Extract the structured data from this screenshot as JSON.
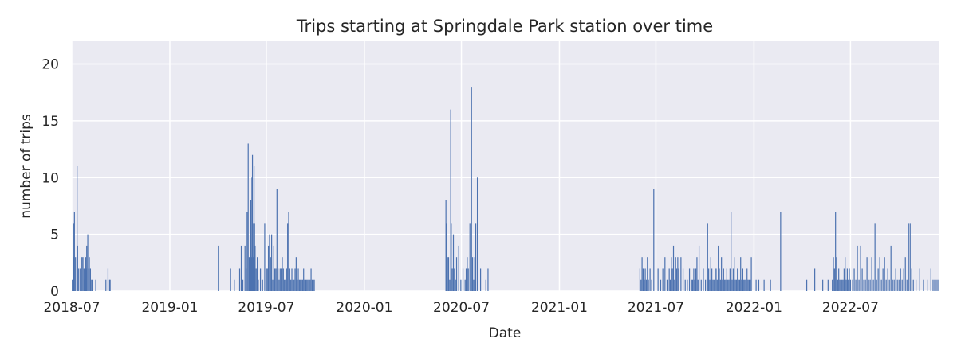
{
  "chart_data": {
    "type": "bar",
    "title": "Trips starting at Springdale Park station over time",
    "xlabel": "Date",
    "ylabel": "number of trips",
    "ylim": [
      0,
      22
    ],
    "xlim": [
      "2018-07-01",
      "2022-12-15"
    ],
    "grid": true,
    "colors": {
      "bar": "#4c72b0",
      "plot_bg": "#eaeaf2",
      "grid": "#ffffff",
      "text": "#262626"
    },
    "x_ticks": [
      "2018-07",
      "2019-01",
      "2019-07",
      "2020-01",
      "2020-07",
      "2021-01",
      "2021-07",
      "2022-01",
      "2022-07"
    ],
    "y_ticks": [
      "0",
      "5",
      "10",
      "15",
      "20"
    ],
    "series": [
      {
        "x": [
          "2018-07-02",
          "2018-07-04",
          "2018-07-05",
          "2018-07-06",
          "2018-07-08",
          "2018-07-11",
          "2018-07-12",
          "2018-07-14",
          "2018-07-17",
          "2018-07-20",
          "2018-07-22",
          "2018-07-24",
          "2018-07-25",
          "2018-07-27",
          "2018-07-28",
          "2018-07-29",
          "2018-07-31",
          "2018-08-02",
          "2018-08-03",
          "2018-08-05",
          "2018-08-06",
          "2018-08-08",
          "2018-08-15",
          "2018-09-03",
          "2018-09-07",
          "2018-09-10",
          "2018-09-11",
          "2019-04-02",
          "2019-04-25",
          "2019-05-02",
          "2019-05-12",
          "2019-05-15",
          "2019-05-18",
          "2019-05-22",
          "2019-05-24",
          "2019-05-26",
          "2019-05-28",
          "2019-05-30",
          "2019-06-01",
          "2019-06-02",
          "2019-06-03",
          "2019-06-04",
          "2019-06-05",
          "2019-06-06",
          "2019-06-07",
          "2019-06-08",
          "2019-06-09",
          "2019-06-10",
          "2019-06-12",
          "2019-06-14",
          "2019-06-16",
          "2019-06-20",
          "2019-06-24",
          "2019-06-28",
          "2019-07-01",
          "2019-07-03",
          "2019-07-05",
          "2019-07-07",
          "2019-07-09",
          "2019-07-11",
          "2019-07-13",
          "2019-07-15",
          "2019-07-17",
          "2019-07-19",
          "2019-07-21",
          "2019-07-23",
          "2019-07-25",
          "2019-07-27",
          "2019-07-29",
          "2019-07-31",
          "2019-08-02",
          "2019-08-04",
          "2019-08-06",
          "2019-08-08",
          "2019-08-10",
          "2019-08-12",
          "2019-08-14",
          "2019-08-16",
          "2019-08-18",
          "2019-08-20",
          "2019-08-22",
          "2019-08-24",
          "2019-08-26",
          "2019-08-28",
          "2019-08-30",
          "2019-09-01",
          "2019-09-03",
          "2019-09-05",
          "2019-09-07",
          "2019-09-09",
          "2019-09-11",
          "2019-09-13",
          "2019-09-15",
          "2019-09-17",
          "2019-09-19",
          "2019-09-21",
          "2019-09-23",
          "2019-09-25",
          "2019-09-27",
          "2019-09-29",
          "2020-06-02",
          "2020-06-03",
          "2020-06-05",
          "2020-06-07",
          "2020-06-09",
          "2020-06-11",
          "2020-06-12",
          "2020-06-14",
          "2020-06-16",
          "2020-06-18",
          "2020-06-20",
          "2020-06-22",
          "2020-06-26",
          "2020-06-30",
          "2020-07-04",
          "2020-07-08",
          "2020-07-10",
          "2020-07-12",
          "2020-07-14",
          "2020-07-17",
          "2020-07-20",
          "2020-07-22",
          "2020-07-24",
          "2020-07-26",
          "2020-07-28",
          "2020-07-31",
          "2020-08-06",
          "2020-08-16",
          "2020-08-20",
          "2021-06-01",
          "2021-06-03",
          "2021-06-05",
          "2021-06-07",
          "2021-06-09",
          "2021-06-11",
          "2021-06-13",
          "2021-06-15",
          "2021-06-17",
          "2021-06-20",
          "2021-06-23",
          "2021-06-27",
          "2021-07-05",
          "2021-07-10",
          "2021-07-14",
          "2021-07-18",
          "2021-07-22",
          "2021-07-26",
          "2021-07-28",
          "2021-07-30",
          "2021-08-01",
          "2021-08-03",
          "2021-08-05",
          "2021-08-07",
          "2021-08-09",
          "2021-08-11",
          "2021-08-13",
          "2021-08-17",
          "2021-08-21",
          "2021-08-25",
          "2021-08-29",
          "2021-09-02",
          "2021-09-06",
          "2021-09-08",
          "2021-09-10",
          "2021-09-12",
          "2021-09-14",
          "2021-09-16",
          "2021-09-18",
          "2021-09-20",
          "2021-09-24",
          "2021-09-28",
          "2021-10-02",
          "2021-10-06",
          "2021-10-08",
          "2021-10-10",
          "2021-10-12",
          "2021-10-14",
          "2021-10-16",
          "2021-10-18",
          "2021-10-20",
          "2021-10-22",
          "2021-10-24",
          "2021-10-26",
          "2021-10-28",
          "2021-10-30",
          "2021-11-01",
          "2021-11-03",
          "2021-11-05",
          "2021-11-07",
          "2021-11-09",
          "2021-11-11",
          "2021-11-13",
          "2021-11-15",
          "2021-11-17",
          "2021-11-19",
          "2021-11-21",
          "2021-11-23",
          "2021-11-25",
          "2021-11-27",
          "2021-11-29",
          "2021-12-01",
          "2021-12-03",
          "2021-12-05",
          "2021-12-07",
          "2021-12-09",
          "2021-12-11",
          "2021-12-13",
          "2021-12-15",
          "2021-12-17",
          "2021-12-19",
          "2021-12-21",
          "2021-12-23",
          "2021-12-25",
          "2021-12-27",
          "2022-01-05",
          "2022-01-10",
          "2022-01-20",
          "2022-02-01",
          "2022-02-20",
          "2022-04-10",
          "2022-04-25",
          "2022-05-10",
          "2022-05-20",
          "2022-05-28",
          "2022-05-30",
          "2022-06-01",
          "2022-06-03",
          "2022-06-05",
          "2022-06-07",
          "2022-06-09",
          "2022-06-11",
          "2022-06-13",
          "2022-06-15",
          "2022-06-17",
          "2022-06-19",
          "2022-06-21",
          "2022-06-23",
          "2022-06-25",
          "2022-06-27",
          "2022-06-29",
          "2022-07-01",
          "2022-07-05",
          "2022-07-08",
          "2022-07-11",
          "2022-07-14",
          "2022-07-17",
          "2022-07-20",
          "2022-07-23",
          "2022-07-26",
          "2022-07-29",
          "2022-08-01",
          "2022-08-04",
          "2022-08-07",
          "2022-08-10",
          "2022-08-13",
          "2022-08-16",
          "2022-08-19",
          "2022-08-22",
          "2022-08-25",
          "2022-08-28",
          "2022-08-31",
          "2022-09-03",
          "2022-09-06",
          "2022-09-09",
          "2022-09-12",
          "2022-09-15",
          "2022-09-18",
          "2022-09-21",
          "2022-09-24",
          "2022-09-27",
          "2022-09-30",
          "2022-10-03",
          "2022-10-06",
          "2022-10-09",
          "2022-10-12",
          "2022-10-15",
          "2022-10-18",
          "2022-10-21",
          "2022-10-24",
          "2022-10-27",
          "2022-11-01",
          "2022-11-08",
          "2022-11-15",
          "2022-11-22",
          "2022-11-29",
          "2022-12-03",
          "2022-12-06",
          "2022-12-09",
          "2022-12-12"
        ],
        "values": [
          1,
          3,
          6,
          7,
          3,
          11,
          4,
          2,
          2,
          3,
          3,
          2,
          1,
          3,
          2,
          4,
          5,
          2,
          3,
          2,
          1,
          1,
          1,
          1,
          2,
          1,
          1,
          4,
          2,
          1,
          2,
          4,
          1,
          4,
          2,
          7,
          13,
          3,
          3,
          8,
          3,
          10,
          12,
          3,
          6,
          11,
          6,
          4,
          2,
          3,
          1,
          2,
          1,
          6,
          2,
          2,
          4,
          5,
          3,
          5,
          1,
          4,
          2,
          2,
          9,
          2,
          1,
          2,
          2,
          3,
          2,
          1,
          1,
          2,
          6,
          7,
          2,
          1,
          2,
          1,
          1,
          2,
          3,
          1,
          2,
          1,
          1,
          1,
          1,
          2,
          1,
          1,
          1,
          1,
          1,
          1,
          2,
          1,
          1,
          1,
          8,
          6,
          3,
          3,
          1,
          16,
          6,
          2,
          5,
          2,
          1,
          3,
          4,
          1,
          2,
          1,
          2,
          3,
          2,
          6,
          18,
          3,
          1,
          3,
          6,
          10,
          2,
          1,
          2,
          2,
          1,
          3,
          2,
          1,
          2,
          1,
          3,
          1,
          2,
          1,
          9,
          2,
          1,
          2,
          3,
          1,
          2,
          1,
          3,
          2,
          4,
          1,
          3,
          2,
          3,
          2,
          3,
          2,
          1,
          1,
          2,
          1,
          1,
          2,
          1,
          2,
          3,
          1,
          4,
          1,
          2,
          1,
          6,
          2,
          1,
          3,
          2,
          1,
          1,
          2,
          2,
          1,
          4,
          2,
          1,
          3,
          1,
          2,
          1,
          1,
          2,
          1,
          1,
          2,
          7,
          1,
          2,
          3,
          1,
          1,
          2,
          1,
          1,
          3,
          1,
          2,
          1,
          1,
          1,
          2,
          1,
          1,
          1,
          3,
          1,
          1,
          1,
          1,
          7,
          1,
          2,
          1,
          1,
          1,
          3,
          2,
          7,
          3,
          1,
          2,
          1,
          1,
          1,
          1,
          2,
          3,
          1,
          2,
          1,
          2,
          1,
          1,
          2,
          1,
          4,
          1,
          4,
          2,
          1,
          1,
          3,
          1,
          1,
          3,
          1,
          6,
          1,
          2,
          3,
          1,
          2,
          3,
          1,
          2,
          1,
          4,
          1,
          1,
          2,
          1,
          1,
          2,
          1,
          2,
          3,
          1,
          6,
          6,
          2,
          1,
          1,
          2,
          1,
          1,
          2,
          1,
          1,
          1,
          1
        ]
      }
    ]
  }
}
